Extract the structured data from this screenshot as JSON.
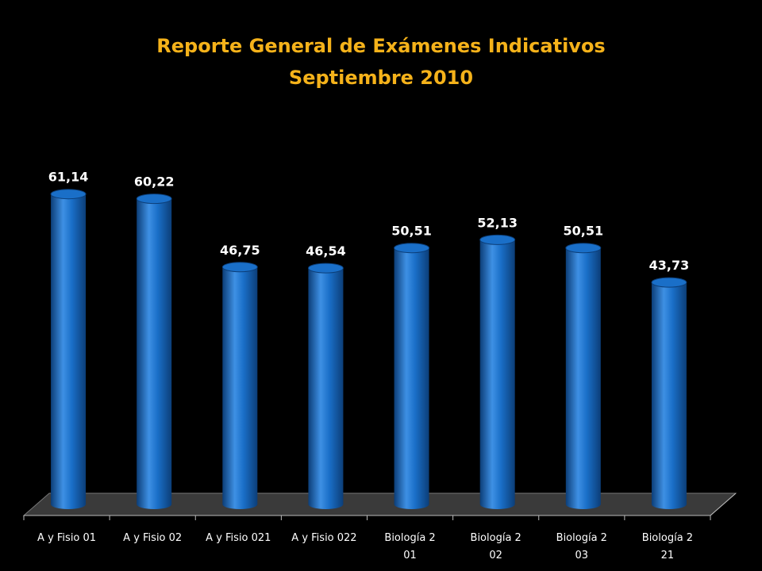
{
  "slide": {
    "title_line1": "Reporte General de Exámenes Indicativos",
    "title_line2": "Septiembre 2010"
  },
  "chart_data": {
    "type": "bar",
    "style": "3d-cylinder",
    "categories": [
      [
        "A y Fisio 01"
      ],
      [
        "A y Fisio 02"
      ],
      [
        "A y Fisio 021"
      ],
      [
        "A y Fisio 022"
      ],
      [
        "Biología 2",
        "01"
      ],
      [
        "Biología 2",
        "02"
      ],
      [
        "Biología 2",
        "03"
      ],
      [
        "Biología 2",
        "21"
      ]
    ],
    "values": [
      61.14,
      60.22,
      46.75,
      46.54,
      50.51,
      52.13,
      50.51,
      43.73
    ],
    "data_labels": [
      "61,14",
      "60,22",
      "46,75",
      "46,54",
      "50,51",
      "52,13",
      "50,51",
      "43,73"
    ],
    "ylim": [
      0,
      65
    ],
    "grid": false,
    "legend": "none",
    "colors": {
      "bar": "#1A6FC8",
      "bar_dark": "#0C3E78",
      "bar_light": "#3E90E4",
      "title": "#F5B21A",
      "label": "#FFFFFF",
      "floor": "#3A3A3A",
      "background": "#000000"
    }
  }
}
